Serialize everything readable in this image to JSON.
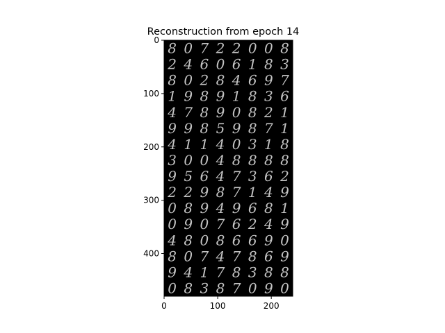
{
  "title": "Reconstruction from epoch 14",
  "image": {
    "description": "grid of reconstructed handwritten digits",
    "rows": 16,
    "cols": 8,
    "background": "#000000",
    "digit_color": "#d9d9d9",
    "digits": [
      [
        "8",
        "0",
        "7",
        "2",
        "2",
        "0",
        "0",
        "8"
      ],
      [
        "2",
        "4",
        "6",
        "0",
        "6",
        "1",
        "8",
        "3"
      ],
      [
        "8",
        "0",
        "2",
        "8",
        "4",
        "6",
        "9",
        "7"
      ],
      [
        "1",
        "9",
        "8",
        "9",
        "1",
        "8",
        "3",
        "6"
      ],
      [
        "4",
        "7",
        "8",
        "9",
        "0",
        "8",
        "2",
        "1"
      ],
      [
        "9",
        "9",
        "8",
        "5",
        "9",
        "8",
        "7",
        "1"
      ],
      [
        "4",
        "1",
        "1",
        "4",
        "0",
        "3",
        "1",
        "8"
      ],
      [
        "3",
        "0",
        "0",
        "4",
        "8",
        "8",
        "8",
        "8"
      ],
      [
        "9",
        "5",
        "6",
        "4",
        "7",
        "3",
        "6",
        "2"
      ],
      [
        "2",
        "2",
        "9",
        "8",
        "7",
        "1",
        "4",
        "9"
      ],
      [
        "0",
        "8",
        "9",
        "4",
        "9",
        "6",
        "8",
        "1"
      ],
      [
        "0",
        "9",
        "0",
        "7",
        "6",
        "2",
        "4",
        "9"
      ],
      [
        "4",
        "8",
        "0",
        "8",
        "6",
        "6",
        "9",
        "0"
      ],
      [
        "8",
        "0",
        "7",
        "4",
        "7",
        "8",
        "6",
        "9"
      ],
      [
        "9",
        "4",
        "1",
        "7",
        "8",
        "3",
        "8",
        "8"
      ],
      [
        "0",
        "8",
        "3",
        "8",
        "7",
        "0",
        "9",
        "0"
      ]
    ]
  },
  "axes": {
    "x_ticks": [
      "0",
      "100",
      "200"
    ],
    "y_ticks": [
      "0",
      "100",
      "200",
      "300",
      "400"
    ],
    "x_tick_values": [
      0,
      100,
      200
    ],
    "y_tick_values": [
      0,
      100,
      200,
      300,
      400
    ],
    "x_range": [
      0,
      240
    ],
    "y_range": [
      0,
      480
    ]
  }
}
